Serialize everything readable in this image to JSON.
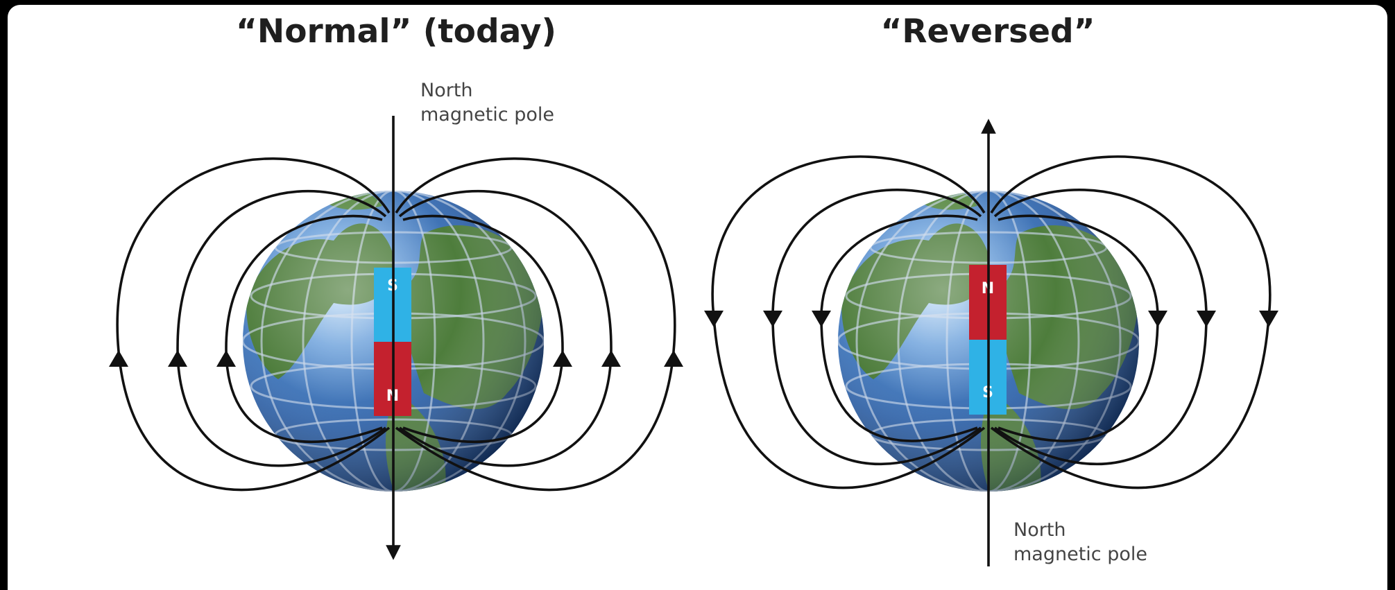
{
  "panels": [
    {
      "title": "“Normal” (today)",
      "pole_label_line1": "North",
      "pole_label_line2": "magnetic pole",
      "magnet_top_letter": "S",
      "magnet_bottom_letter": "N",
      "magnet_top_color": "#2fb2e6",
      "magnet_bottom_color": "#c4212e",
      "field_direction": "up on outer sides, down at north pole"
    },
    {
      "title": "“Reversed”",
      "pole_label_line1": "North",
      "pole_label_line2": "magnetic pole",
      "magnet_top_letter": "N",
      "magnet_bottom_letter": "S",
      "magnet_top_color": "#c4212e",
      "magnet_bottom_color": "#2fb2e6",
      "field_direction": "down on outer sides, up at top pole"
    }
  ],
  "colors": {
    "ocean": "#3a6fb5",
    "land": "#4a7a3a",
    "field_line": "#111111",
    "background": "#ffffff",
    "frame": "#000000"
  }
}
